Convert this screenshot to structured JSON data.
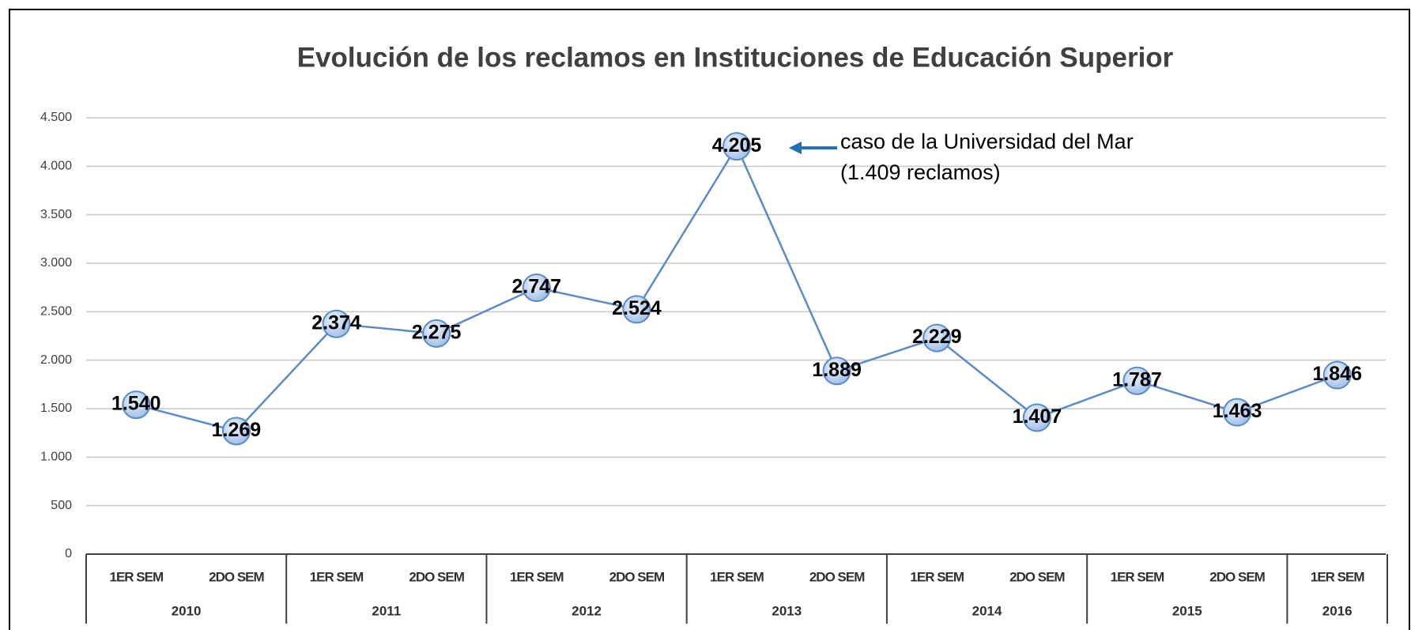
{
  "chart_data": {
    "type": "line",
    "title": "Evolución de los reclamos en Instituciones de Educación Superior",
    "categories": [
      "1ER SEM",
      "2DO SEM",
      "1ER SEM",
      "2DO SEM",
      "1ER SEM",
      "2DO SEM",
      "1ER SEM",
      "2DO SEM",
      "1ER SEM",
      "2DO SEM",
      "1ER SEM",
      "2DO SEM",
      "1ER SEM"
    ],
    "category_groups": [
      {
        "label": "2010",
        "size": 2
      },
      {
        "label": "2011",
        "size": 2
      },
      {
        "label": "2012",
        "size": 2
      },
      {
        "label": "2013",
        "size": 2
      },
      {
        "label": "2014",
        "size": 2
      },
      {
        "label": "2015",
        "size": 2
      },
      {
        "label": "2016",
        "size": 1
      }
    ],
    "values": [
      1540,
      1269,
      2374,
      2275,
      2747,
      2524,
      4205,
      1889,
      2229,
      1407,
      1787,
      1463,
      1846
    ],
    "value_labels": [
      "1.540",
      "1.269",
      "2.374",
      "2.275",
      "2.747",
      "2.524",
      "4.205",
      "1.889",
      "2.229",
      "1.407",
      "1.787",
      "1.463",
      "1.846"
    ],
    "color": "#5b8ac6",
    "ylim": [
      0,
      4500
    ],
    "yticks": [
      0,
      500,
      {
        "value": 1000,
        "label": "1.000"
      },
      {
        "value": 1500,
        "label": "1.500"
      },
      {
        "value": 2000,
        "label": "2.000"
      },
      {
        "value": 2500,
        "label": "2.500"
      },
      {
        "value": 3000,
        "label": "3.000"
      },
      {
        "value": 3500,
        "label": "3.500"
      },
      {
        "value": 4000,
        "label": "4.000"
      },
      {
        "value": 4500,
        "label": "4.500"
      }
    ],
    "grid": true,
    "annotation": {
      "lines": [
        "caso de la Universidad del Mar",
        "(1.409 reclamos)"
      ],
      "point": 6
    }
  }
}
